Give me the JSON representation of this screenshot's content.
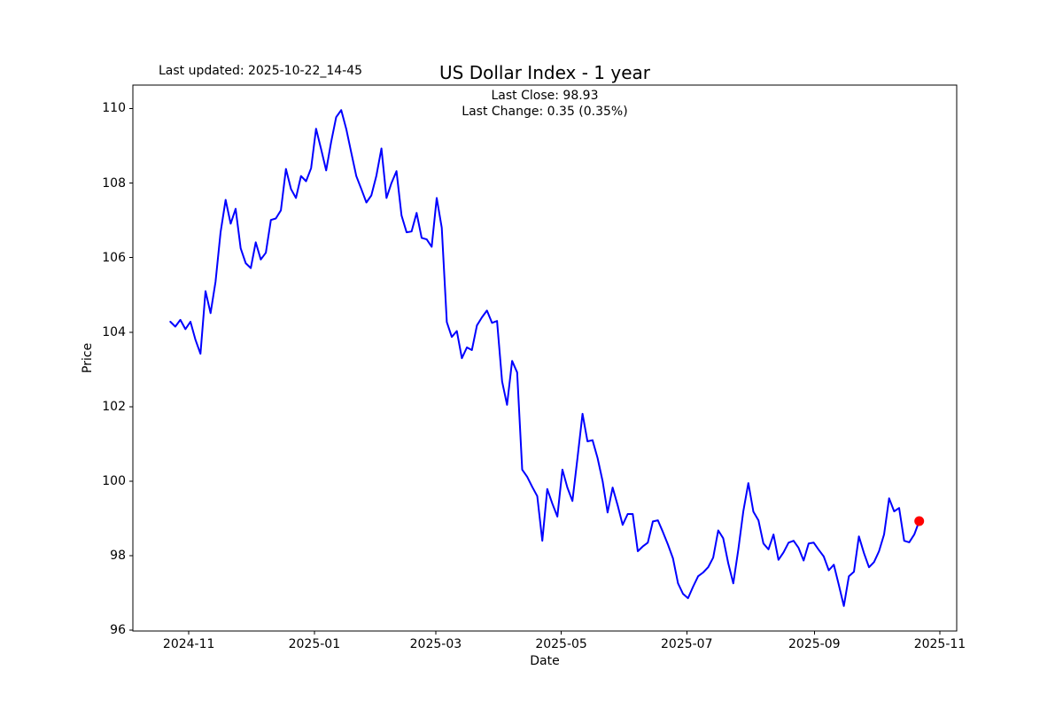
{
  "figure": {
    "title": "US Dollar Index - 1 year",
    "last_updated": "Last updated: 2025-10-22_14-45",
    "annotation_line1": "Last Close: 98.93",
    "annotation_line2": "Last Change: 0.35 (0.35%)"
  },
  "chart_data": {
    "type": "line",
    "title": "US Dollar Index - 1 year",
    "xlabel": "Date",
    "ylabel": "Price",
    "x_start": "2024-10-23",
    "x_end": "2025-10-22",
    "span_days": 364,
    "x_margin_days": 18.2,
    "ylim": [
      95.98,
      110.63
    ],
    "grid": false,
    "legend": null,
    "last_close": 98.93,
    "last_change": "0.35 (0.35%)",
    "line_color": "#0000ff",
    "line_width": 2,
    "marker": {
      "color": "#ff0000",
      "radius": 5.5,
      "value": 98.93
    },
    "yticks": [
      {
        "label": "96",
        "value": 96
      },
      {
        "label": "98",
        "value": 98
      },
      {
        "label": "100",
        "value": 100
      },
      {
        "label": "102",
        "value": 102
      },
      {
        "label": "104",
        "value": 104
      },
      {
        "label": "106",
        "value": 106
      },
      {
        "label": "108",
        "value": 108
      },
      {
        "label": "110",
        "value": 110
      }
    ],
    "xticks": [
      {
        "label": "2024-11",
        "day": 9
      },
      {
        "label": "2025-01",
        "day": 70
      },
      {
        "label": "2025-03",
        "day": 129
      },
      {
        "label": "2025-05",
        "day": 190
      },
      {
        "label": "2025-07",
        "day": 251
      },
      {
        "label": "2025-09",
        "day": 313
      },
      {
        "label": "2025-11",
        "day": 374
      }
    ],
    "values": [
      104.28,
      104.15,
      104.33,
      104.08,
      104.28,
      103.8,
      103.42,
      105.1,
      104.51,
      105.35,
      106.68,
      107.55,
      106.91,
      107.31,
      106.25,
      105.85,
      105.72,
      106.41,
      105.95,
      106.13,
      107.01,
      107.05,
      107.27,
      108.38,
      107.84,
      107.6,
      108.19,
      108.05,
      108.4,
      109.46,
      108.91,
      108.34,
      109.1,
      109.77,
      109.96,
      109.45,
      108.82,
      108.19,
      107.84,
      107.48,
      107.67,
      108.2,
      108.93,
      107.6,
      108.0,
      108.32,
      107.13,
      106.68,
      106.7,
      107.2,
      106.53,
      106.49,
      106.29,
      107.6,
      106.8,
      104.27,
      103.87,
      104.03,
      103.3,
      103.59,
      103.52,
      104.18,
      104.4,
      104.58,
      104.25,
      104.3,
      102.68,
      102.05,
      103.23,
      102.92,
      100.31,
      100.12,
      99.85,
      99.6,
      98.4,
      99.79,
      99.4,
      99.05,
      100.31,
      99.83,
      99.47,
      100.62,
      101.81,
      101.07,
      101.1,
      100.62,
      100.0,
      99.16,
      99.83,
      99.35,
      98.83,
      99.12,
      99.12,
      98.12,
      98.25,
      98.35,
      98.92,
      98.95,
      98.64,
      98.3,
      97.93,
      97.26,
      96.98,
      96.86,
      97.17,
      97.45,
      97.55,
      97.69,
      97.95,
      98.68,
      98.47,
      97.8,
      97.26,
      98.17,
      99.19,
      99.95,
      99.18,
      98.95,
      98.33,
      98.17,
      98.57,
      97.89,
      98.09,
      98.35,
      98.4,
      98.21,
      97.87,
      98.33,
      98.35,
      98.16,
      97.98,
      97.61,
      97.76,
      97.22,
      96.65,
      97.45,
      97.57,
      98.52,
      98.07,
      97.69,
      97.83,
      98.12,
      98.57,
      99.54,
      99.19,
      99.28,
      98.4,
      98.36,
      98.57,
      98.93
    ]
  }
}
